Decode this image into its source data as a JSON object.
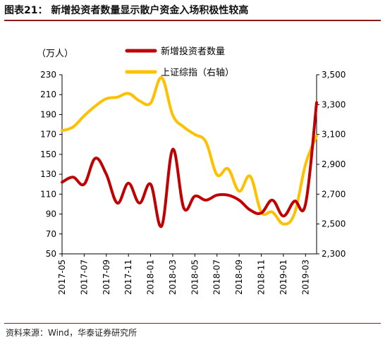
{
  "header": {
    "title": "图表21：  新增投资者数量显示散户资金入场积极性较高"
  },
  "footer": {
    "source": "资料来源：Wind，华泰证券研究所"
  },
  "chart_data": {
    "type": "line",
    "y_left_unit": "（万人）",
    "y_left_ticks": [
      "230",
      "210",
      "190",
      "170",
      "150",
      "130",
      "110",
      "90",
      "70",
      "50"
    ],
    "y_left_range": [
      50,
      230
    ],
    "y_right_ticks": [
      "3,500",
      "3,300",
      "3,100",
      "2,900",
      "2,700",
      "2,500",
      "2,300"
    ],
    "y_right_range": [
      2300,
      3500
    ],
    "x_tick_labels": [
      "2017-05",
      "2017-07",
      "2017-09",
      "2017-11",
      "2018-01",
      "2018-03",
      "2018-05",
      "2018-07",
      "2018-09",
      "2018-11",
      "2019-01",
      "2019-03"
    ],
    "x_range": [
      0,
      23
    ],
    "series": [
      {
        "name": "新增投资者数量",
        "axis": "left",
        "color": "#c00000",
        "points": [
          [
            0,
            122
          ],
          [
            1,
            127
          ],
          [
            2,
            120
          ],
          [
            3,
            146
          ],
          [
            4,
            130
          ],
          [
            5,
            101
          ],
          [
            6,
            121
          ],
          [
            7,
            101
          ],
          [
            8,
            120
          ],
          [
            9,
            78
          ],
          [
            10,
            155
          ],
          [
            11,
            96
          ],
          [
            12,
            108
          ],
          [
            13,
            104
          ],
          [
            14,
            109
          ],
          [
            15,
            109
          ],
          [
            16,
            104
          ],
          [
            17,
            94
          ],
          [
            18,
            91
          ],
          [
            19,
            104
          ],
          [
            20,
            88
          ],
          [
            21,
            103
          ],
          [
            22,
            100
          ],
          [
            23,
            202
          ]
        ]
      },
      {
        "name": "上证综指（右轴）",
        "axis": "right",
        "color": "#ffc000",
        "points": [
          [
            0,
            3125
          ],
          [
            1,
            3150
          ],
          [
            2,
            3225
          ],
          [
            3,
            3290
          ],
          [
            4,
            3340
          ],
          [
            5,
            3350
          ],
          [
            6,
            3375
          ],
          [
            7,
            3325
          ],
          [
            8,
            3310
          ],
          [
            9,
            3480
          ],
          [
            10,
            3230
          ],
          [
            11,
            3150
          ],
          [
            12,
            3100
          ],
          [
            13,
            3050
          ],
          [
            14,
            2830
          ],
          [
            15,
            2870
          ],
          [
            16,
            2720
          ],
          [
            17,
            2820
          ],
          [
            18,
            2580
          ],
          [
            19,
            2580
          ],
          [
            20,
            2500
          ],
          [
            21,
            2570
          ],
          [
            22,
            2900
          ],
          [
            23,
            3090
          ]
        ]
      }
    ]
  }
}
